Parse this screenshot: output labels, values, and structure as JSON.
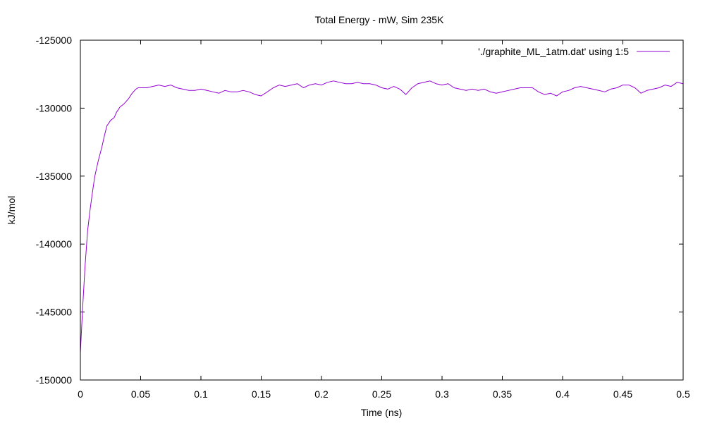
{
  "chart_data": {
    "type": "line",
    "title": "Total Energy - mW, Sim 235K",
    "xlabel": "Time (ns)",
    "ylabel": "kJ/mol",
    "xlim": [
      0,
      0.5
    ],
    "ylim": [
      -150000,
      -125000
    ],
    "xticks": [
      "0",
      "0.05",
      "0.1",
      "0.15",
      "0.2",
      "0.25",
      "0.3",
      "0.35",
      "0.4",
      "0.45",
      "0.5"
    ],
    "yticks": [
      "-125000",
      "-130000",
      "-135000",
      "-140000",
      "-145000",
      "-150000"
    ],
    "grid": false,
    "legend_position": "top-right",
    "series": [
      {
        "name": "'./graphite_ML_1atm.dat' using 1:5",
        "color": "#9400d3",
        "x": [
          0,
          0.002,
          0.004,
          0.006,
          0.008,
          0.01,
          0.012,
          0.015,
          0.018,
          0.02,
          0.022,
          0.025,
          0.028,
          0.03,
          0.033,
          0.036,
          0.04,
          0.043,
          0.046,
          0.048,
          0.05,
          0.055,
          0.06,
          0.065,
          0.07,
          0.075,
          0.08,
          0.085,
          0.09,
          0.095,
          0.1,
          0.105,
          0.11,
          0.115,
          0.12,
          0.125,
          0.13,
          0.135,
          0.14,
          0.145,
          0.15,
          0.155,
          0.16,
          0.165,
          0.17,
          0.175,
          0.18,
          0.185,
          0.19,
          0.195,
          0.2,
          0.205,
          0.21,
          0.215,
          0.22,
          0.225,
          0.23,
          0.235,
          0.24,
          0.245,
          0.25,
          0.255,
          0.26,
          0.265,
          0.27,
          0.275,
          0.28,
          0.285,
          0.29,
          0.295,
          0.3,
          0.305,
          0.31,
          0.315,
          0.32,
          0.325,
          0.33,
          0.335,
          0.34,
          0.345,
          0.35,
          0.355,
          0.36,
          0.365,
          0.37,
          0.375,
          0.38,
          0.385,
          0.39,
          0.395,
          0.4,
          0.405,
          0.41,
          0.415,
          0.42,
          0.425,
          0.43,
          0.435,
          0.44,
          0.445,
          0.45,
          0.455,
          0.46,
          0.465,
          0.47,
          0.475,
          0.48,
          0.485,
          0.49,
          0.495,
          0.5
        ],
        "y": [
          -148000,
          -144500,
          -141500,
          -139000,
          -137500,
          -136200,
          -135000,
          -133800,
          -132800,
          -132000,
          -131300,
          -130900,
          -130700,
          -130300,
          -129900,
          -129700,
          -129300,
          -128900,
          -128600,
          -128500,
          -128500,
          -128500,
          -128400,
          -128300,
          -128400,
          -128300,
          -128500,
          -128600,
          -128700,
          -128700,
          -128600,
          -128700,
          -128800,
          -128900,
          -128700,
          -128800,
          -128800,
          -128700,
          -128800,
          -129000,
          -129100,
          -128800,
          -128500,
          -128300,
          -128400,
          -128300,
          -128200,
          -128500,
          -128300,
          -128200,
          -128300,
          -128100,
          -128000,
          -128100,
          -128200,
          -128200,
          -128100,
          -128200,
          -128200,
          -128300,
          -128500,
          -128600,
          -128400,
          -128600,
          -129000,
          -128500,
          -128200,
          -128100,
          -128000,
          -128200,
          -128300,
          -128200,
          -128500,
          -128600,
          -128700,
          -128600,
          -128700,
          -128600,
          -128800,
          -128900,
          -128800,
          -128700,
          -128600,
          -128500,
          -128500,
          -128500,
          -128800,
          -129000,
          -128900,
          -129100,
          -128800,
          -128700,
          -128500,
          -128400,
          -128500,
          -128600,
          -128700,
          -128800,
          -128600,
          -128500,
          -128300,
          -128300,
          -128500,
          -128900,
          -128700,
          -128600,
          -128500,
          -128300,
          -128400,
          -128100,
          -128200
        ]
      }
    ]
  }
}
